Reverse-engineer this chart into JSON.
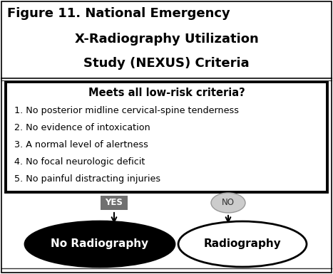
{
  "title_line1": "Figure 11. National Emergency",
  "title_line2": "X-Radiography Utilization",
  "title_line3": "Study (NEXUS) Criteria",
  "box_header": "Meets all low-risk criteria?",
  "criteria": [
    "1. No posterior midline cervical-spine tenderness",
    "2. No evidence of intoxication",
    "3. A normal level of alertness",
    "4. No focal neurologic deficit",
    "5. No painful distracting injuries"
  ],
  "yes_label": "YES",
  "no_label": "NO",
  "left_outcome": "No Radiography",
  "right_outcome": "Radiography",
  "bg_color": "#ffffff",
  "box_border_color": "#000000",
  "left_ellipse_fill": "#000000",
  "left_ellipse_text_color": "#ffffff",
  "right_ellipse_fill": "#ffffff",
  "right_ellipse_text_color": "#000000",
  "yes_box_color": "#707070",
  "no_box_color": "#cccccc",
  "yes_text_color": "#ffffff",
  "no_text_color": "#333333",
  "title_bg_color": "#ffffff",
  "separator_color": "#333333"
}
